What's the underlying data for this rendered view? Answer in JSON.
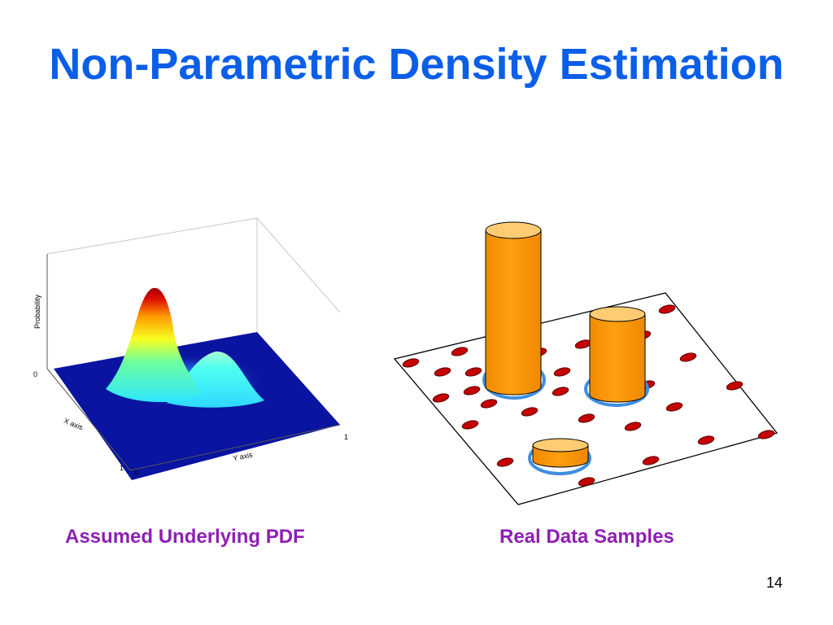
{
  "slide": {
    "title": "Non-Parametric Density Estimation",
    "page_number": "14"
  },
  "colors": {
    "title": "#0a5ee8",
    "caption": "#8e1fb4",
    "surface_base": "#0a14a0",
    "sample_dot": "#c40000",
    "cylinder": "#ff9900",
    "cylinder_top": "#ffcc73",
    "ring": "#3f8fe0"
  },
  "left_panel": {
    "caption": "Assumed Underlying PDF",
    "z_axis_label": "Probability",
    "x_axis_label": "X axis",
    "y_axis_label": "Y axis",
    "tick_z_zero": "0",
    "tick_x_one": "1",
    "tick_origin_zero": "0",
    "tick_y_one": "1"
  },
  "right_panel": {
    "caption": "Real Data Samples"
  }
}
